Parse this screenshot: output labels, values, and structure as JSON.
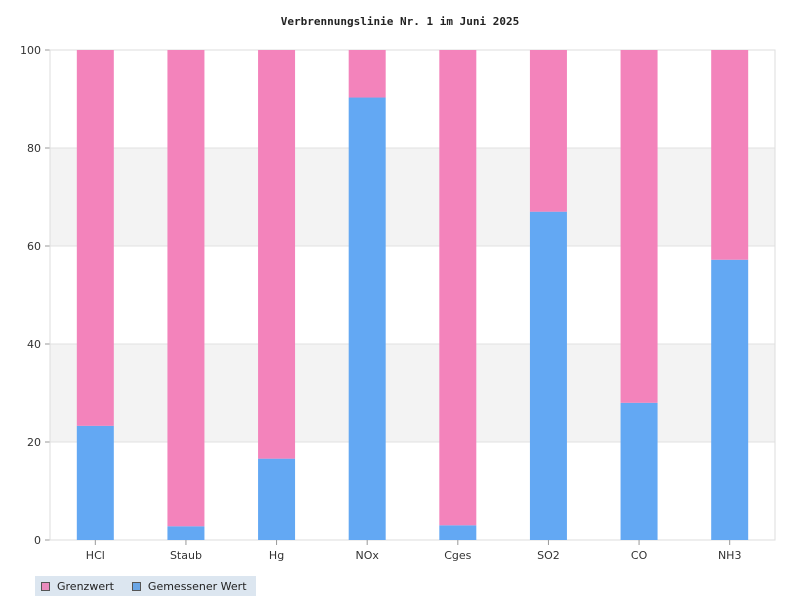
{
  "chart_data": {
    "type": "bar",
    "stacked": true,
    "title": "Verbrennungslinie Nr. 1 im Juni 2025",
    "categories": [
      "HCl",
      "Staub",
      "Hg",
      "NOx",
      "Cges",
      "SO2",
      "CO",
      "NH3"
    ],
    "series": [
      {
        "name": "Gemessener Wert",
        "color": "#63a8f3",
        "values": [
          23.3,
          2.8,
          16.6,
          90.3,
          3.0,
          67.0,
          28.0,
          57.2
        ]
      },
      {
        "name": "Grenzwert",
        "color": "#f383bb",
        "values": [
          76.7,
          97.2,
          83.4,
          9.7,
          97.0,
          33.0,
          72.0,
          42.8
        ]
      }
    ],
    "ylim": [
      0,
      100
    ],
    "yticks": [
      0,
      20,
      40,
      60,
      80,
      100
    ],
    "xlabel": "",
    "ylabel": "",
    "grid": true,
    "band_color": "#f3f3f3",
    "legend": {
      "position": "bottom-left",
      "background": "#dce6f0",
      "items": [
        {
          "label": "Grenzwert",
          "color": "#e98bbd"
        },
        {
          "label": "Gemessener Wert",
          "color": "#6aa6e6"
        }
      ]
    }
  }
}
